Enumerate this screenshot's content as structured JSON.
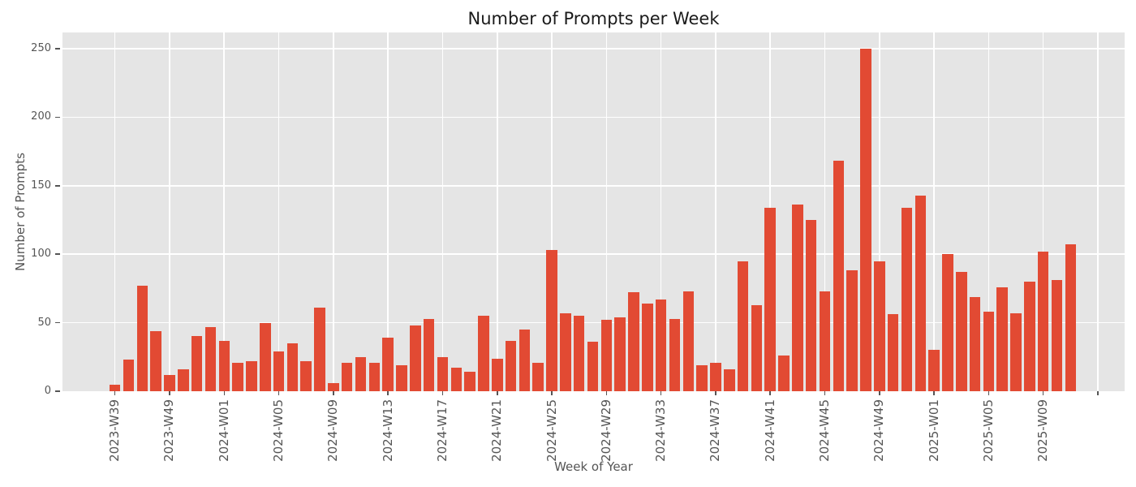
{
  "chart_data": {
    "type": "bar",
    "title": "Number of Prompts per Week",
    "xlabel": "Week of Year",
    "ylabel": "Number of Prompts",
    "ylim": [
      0,
      262.5
    ],
    "yticks": [
      0,
      50,
      100,
      150,
      200,
      250
    ],
    "grid": true,
    "legend_position": "none",
    "xtick_every": 4,
    "xtick_labels": [
      "2023-W39",
      "2023-W49",
      "2024-W01",
      "2024-W05",
      "2024-W09",
      "2024-W13",
      "2024-W17",
      "2024-W21",
      "2024-W25",
      "2024-W29",
      "2024-W33",
      "2024-W37",
      "2024-W41",
      "2024-W45",
      "2024-W49",
      "2025-W01",
      "2025-W05",
      "2025-W09",
      ""
    ],
    "values": [
      5,
      23,
      77,
      44,
      12,
      16,
      40,
      47,
      37,
      21,
      22,
      50,
      29,
      35,
      22,
      61,
      6,
      21,
      25,
      21,
      39,
      19,
      48,
      53,
      25,
      17,
      14,
      55,
      24,
      37,
      45,
      21,
      103,
      57,
      55,
      36,
      52,
      54,
      72,
      64,
      67,
      53,
      73,
      19,
      21,
      16,
      95,
      63,
      134,
      26,
      136,
      125,
      73,
      168,
      88,
      250,
      95,
      56,
      134,
      143,
      30,
      100,
      87,
      69,
      58,
      76,
      57,
      80,
      102,
      81,
      107,
      0,
      0
    ],
    "colors": {
      "bar": "#E24A33",
      "plot_background": "#E5E5E5",
      "grid": "#FFFFFF",
      "tick_labels": "#555555",
      "axis_labels": "#555555",
      "title": "#1A1A1A",
      "figure_background": "#FFFFFF"
    }
  }
}
